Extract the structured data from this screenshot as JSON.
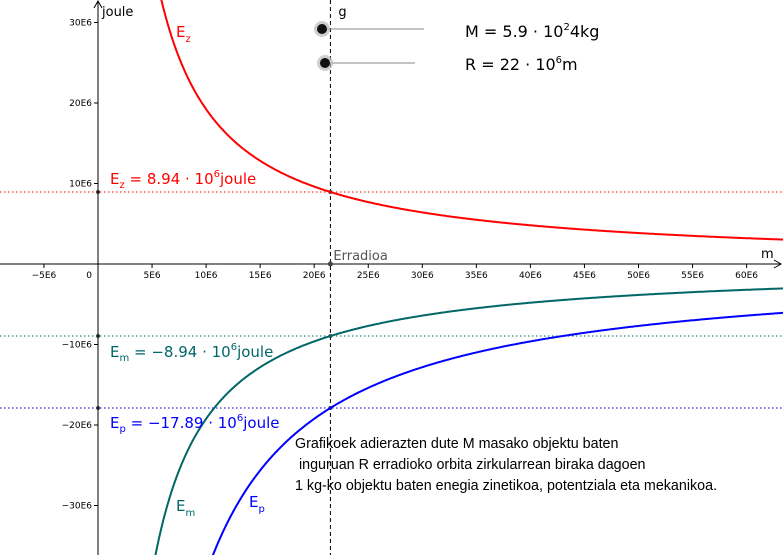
{
  "chart_data": {
    "type": "line",
    "x_axis_label": "m",
    "y_axis_label": "joule",
    "xlim": [
      -6000000.0,
      66000000.0
    ],
    "ylim": [
      -35000000.0,
      33000000.0
    ],
    "x_ticks": [
      {
        "v": -5000000.0,
        "label": "−5E6"
      },
      {
        "v": 0,
        "label": "0"
      },
      {
        "v": 5000000.0,
        "label": "5E6"
      },
      {
        "v": 10000000.0,
        "label": "10E6"
      },
      {
        "v": 15000000.0,
        "label": "15E6"
      },
      {
        "v": 20000000.0,
        "label": "20E6"
      },
      {
        "v": 25000000.0,
        "label": "25E6"
      },
      {
        "v": 30000000.0,
        "label": "30E6"
      },
      {
        "v": 35000000.0,
        "label": "35E6"
      },
      {
        "v": 40000000.0,
        "label": "40E6"
      },
      {
        "v": 45000000.0,
        "label": "45E6"
      },
      {
        "v": 50000000.0,
        "label": "50E6"
      },
      {
        "v": 55000000.0,
        "label": "55E6"
      },
      {
        "v": 60000000.0,
        "label": "60E6"
      }
    ],
    "y_ticks": [
      {
        "v": 30000000.0,
        "label": "30E6"
      },
      {
        "v": 20000000.0,
        "label": "20E6"
      },
      {
        "v": 10000000.0,
        "label": "10E6"
      },
      {
        "v": -10000000.0,
        "label": "−10E6"
      },
      {
        "v": -20000000.0,
        "label": "−20E6"
      },
      {
        "v": -30000000.0,
        "label": "−30E6"
      }
    ],
    "radius_line": {
      "x": 21500000.0,
      "top_label": "g",
      "axis_label": "Erradioa"
    },
    "series": [
      {
        "name": "Ez",
        "color": "#ff0000",
        "k": 192300000000000.0,
        "sign": 1,
        "label_main": "E",
        "label_sub": "z",
        "level_value": 8940000.0,
        "level_prefix": "E",
        "level_sub": "z",
        "level_text": " = 8.94 · 10",
        "level_sup": "6",
        "level_unit": "joule"
      },
      {
        "name": "Em",
        "color": "#006666",
        "k": 192300000000000.0,
        "sign": -1,
        "label_main": "E",
        "label_sub": "m",
        "level_value": -8940000.0,
        "level_prefix": "E",
        "level_sub": "m",
        "level_text": " = −8.94 · 10",
        "level_sup": "6",
        "level_unit": "joule"
      },
      {
        "name": "Ep",
        "color": "#0000ff",
        "k": 384600000000000.0,
        "sign": -1,
        "label_main": "E",
        "label_sub": "p",
        "level_value": -17890000.0,
        "level_prefix": "E",
        "level_sub": "p",
        "level_text": " = −17.89 · 10",
        "level_sup": "6",
        "level_unit": "joule"
      }
    ]
  },
  "sliders": [
    {
      "name": "mass",
      "label_prefix": "M = 5.9 · 10",
      "label_sup": "2",
      "label_suffix": "4kg"
    },
    {
      "name": "radius",
      "label_prefix": "R = 22 · 10",
      "label_sup": "6",
      "label_suffix": "m"
    }
  ],
  "description": {
    "line1": "Grafikoek adierazten dute M masako objektu baten",
    "line2": " inguruan R erradioko orbita zirkularrean biraka dagoen",
    "line3": "1 kg-ko objektu baten enegia zinetikoa, potentziala eta mekanikoa."
  }
}
